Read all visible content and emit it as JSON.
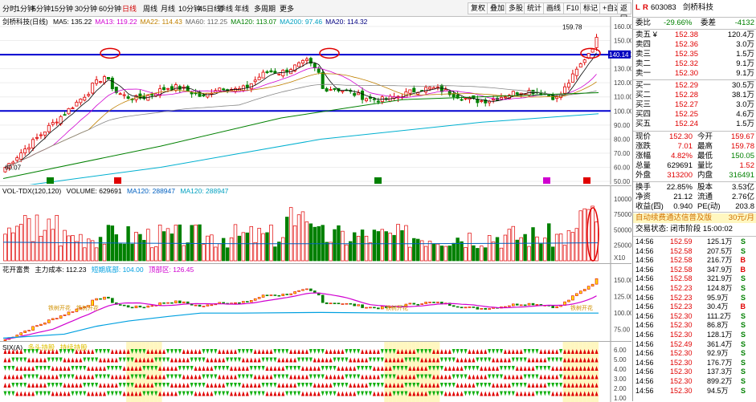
{
  "toolbar": {
    "periods": [
      "分时",
      "1分钟",
      "5分钟",
      "15分钟",
      "30分钟",
      "60分钟",
      "日线",
      "周线",
      "月线",
      "10分钟",
      "45日线",
      "季线",
      "年线",
      "多周期",
      "更多"
    ],
    "active_period": "日线",
    "buttons": [
      "复权",
      "叠加",
      "多股",
      "统计",
      "画线",
      "F10",
      "标记",
      "+自选",
      "返回"
    ]
  },
  "main_legend": {
    "name": "剑桥科技(日线)",
    "ma": [
      {
        "label": "MA5: 135.22",
        "color": "#000000"
      },
      {
        "label": "MA13: 119.22",
        "color": "#d000d0"
      },
      {
        "label": "MA22: 114.43",
        "color": "#c08000"
      },
      {
        "label": "MA60: 112.25",
        "color": "#666666"
      },
      {
        "label": "MA120: 113.07",
        "color": "#008000"
      },
      {
        "label": "MA200: 97.46",
        "color": "#00a0c0"
      },
      {
        "label": "MA20: 114.32",
        "color": "#000080"
      }
    ]
  },
  "main_axis": [
    "160.00",
    "150.00",
    "140.00",
    "130.00",
    "120.00",
    "110.00",
    "100.00",
    "90.00",
    "80.00",
    "70.00",
    "60.00",
    "50.00"
  ],
  "main_labels": {
    "high": "159.78",
    "low": "60.07",
    "cur": "140.14"
  },
  "vol_legend": {
    "title": "VOL-TDX(120,120)",
    "volume": "VOLUME: 629691",
    "ma120a": "MA120: 288947",
    "ma120b": "MA120: 288947"
  },
  "vol_axis": [
    "100000",
    "75000",
    "50000",
    "25000",
    "X10"
  ],
  "ind_legend": {
    "title": "花开富贵",
    "cost": "主力成本: 112.23",
    "bottom": "短期底部: 104.00",
    "top": "顶部区: 126.45"
  },
  "ind_axis": [
    "150.00",
    "125.00",
    "100.00",
    "75.00"
  ],
  "ind_texts": [
    "铁树开花",
    "铁树开花",
    "铁树开花",
    "铁树开花"
  ],
  "bot_legend": {
    "title": "SIX(A)",
    "a": "多头持股",
    "b": "持续持股"
  },
  "bot_axis": [
    "6.00",
    "5.00",
    "4.00",
    "3.00",
    "2.00",
    "1.00"
  ],
  "markers": {
    "l": "L",
    "r": "R",
    "code": "603083",
    "name": "剑桥科技"
  },
  "quote": {
    "weibi": {
      "label": "委比",
      "v1": "-29.66%",
      "label2": "委差",
      "v2": "-4132"
    },
    "sells": [
      {
        "label": "卖五 ¥",
        "price": "152.38",
        "vol": "120.4万"
      },
      {
        "label": "卖四",
        "price": "152.36",
        "vol": "3.0万"
      },
      {
        "label": "卖三",
        "price": "152.35",
        "vol": "1.5万"
      },
      {
        "label": "卖二",
        "price": "152.32",
        "vol": "9.1万"
      },
      {
        "label": "卖一",
        "price": "152.30",
        "vol": "9.1万"
      }
    ],
    "buys": [
      {
        "label": "买一",
        "price": "152.29",
        "vol": "30.5万"
      },
      {
        "label": "买二",
        "price": "152.28",
        "vol": "38.1万"
      },
      {
        "label": "买三",
        "price": "152.27",
        "vol": "3.0万"
      },
      {
        "label": "买四",
        "price": "152.25",
        "vol": "4.6万"
      },
      {
        "label": "买五",
        "price": "152.24",
        "vol": "1.5万"
      }
    ],
    "stats": [
      {
        "l1": "现价",
        "v1": "152.30",
        "l2": "今开",
        "v2": "159.67"
      },
      {
        "l1": "涨跌",
        "v1": "7.01",
        "l2": "最高",
        "v2": "159.78"
      },
      {
        "l1": "涨幅",
        "v1": "4.82%",
        "l2": "最低",
        "v2": "150.05"
      },
      {
        "l1": "总量",
        "v1": "629691",
        "l2": "量比",
        "v2": "1.52"
      },
      {
        "l1": "外盘",
        "v1": "313200",
        "l2": "内盘",
        "v2": "316491"
      }
    ],
    "stats2": [
      {
        "l1": "换手",
        "v1": "22.85%",
        "l2": "股本",
        "v2": "3.53亿"
      },
      {
        "l1": "净资",
        "v1": "21.12",
        "l2": "流通",
        "v2": "2.76亿"
      },
      {
        "l1": "收益(四)",
        "v1": "0.940",
        "l2": "PE(动)",
        "v2": "203.8"
      }
    ],
    "promo": "自动续费通达信普及版",
    "promo_price": "30元/月",
    "status": "交易状态: 闭市阶段 15:00:02"
  },
  "ticks": [
    {
      "t": "14:56",
      "p": "152.59",
      "v": "125.1万",
      "s": "S"
    },
    {
      "t": "14:56",
      "p": "152.58",
      "v": "207.5万",
      "s": "S"
    },
    {
      "t": "14:56",
      "p": "152.58",
      "v": "216.7万",
      "s": "B"
    },
    {
      "t": "14:56",
      "p": "152.58",
      "v": "347.9万",
      "s": "B"
    },
    {
      "t": "14:56",
      "p": "152.58",
      "v": "321.9万",
      "s": "S"
    },
    {
      "t": "14:56",
      "p": "152.23",
      "v": "124.8万",
      "s": "S"
    },
    {
      "t": "14:56",
      "p": "152.23",
      "v": "95.9万",
      "s": "S"
    },
    {
      "t": "14:56",
      "p": "152.23",
      "v": "30.4万",
      "s": "B"
    },
    {
      "t": "14:56",
      "p": "152.30",
      "v": "111.2万",
      "s": "S"
    },
    {
      "t": "14:56",
      "p": "152.30",
      "v": "86.8万",
      "s": "S"
    },
    {
      "t": "14:56",
      "p": "152.30",
      "v": "128.1万",
      "s": "S"
    },
    {
      "t": "14:56",
      "p": "152.49",
      "v": "361.4万",
      "s": "S"
    },
    {
      "t": "14:56",
      "p": "152.30",
      "v": "92.9万",
      "s": "S"
    },
    {
      "t": "14:56",
      "p": "152.30",
      "v": "176.7万",
      "s": "S"
    },
    {
      "t": "14:56",
      "p": "152.30",
      "v": "137.3万",
      "s": "S"
    },
    {
      "t": "14:56",
      "p": "152.30",
      "v": "899.2万",
      "s": "S"
    },
    {
      "t": "14:56",
      "p": "152.30",
      "v": "94.5万",
      "s": "S"
    }
  ]
}
